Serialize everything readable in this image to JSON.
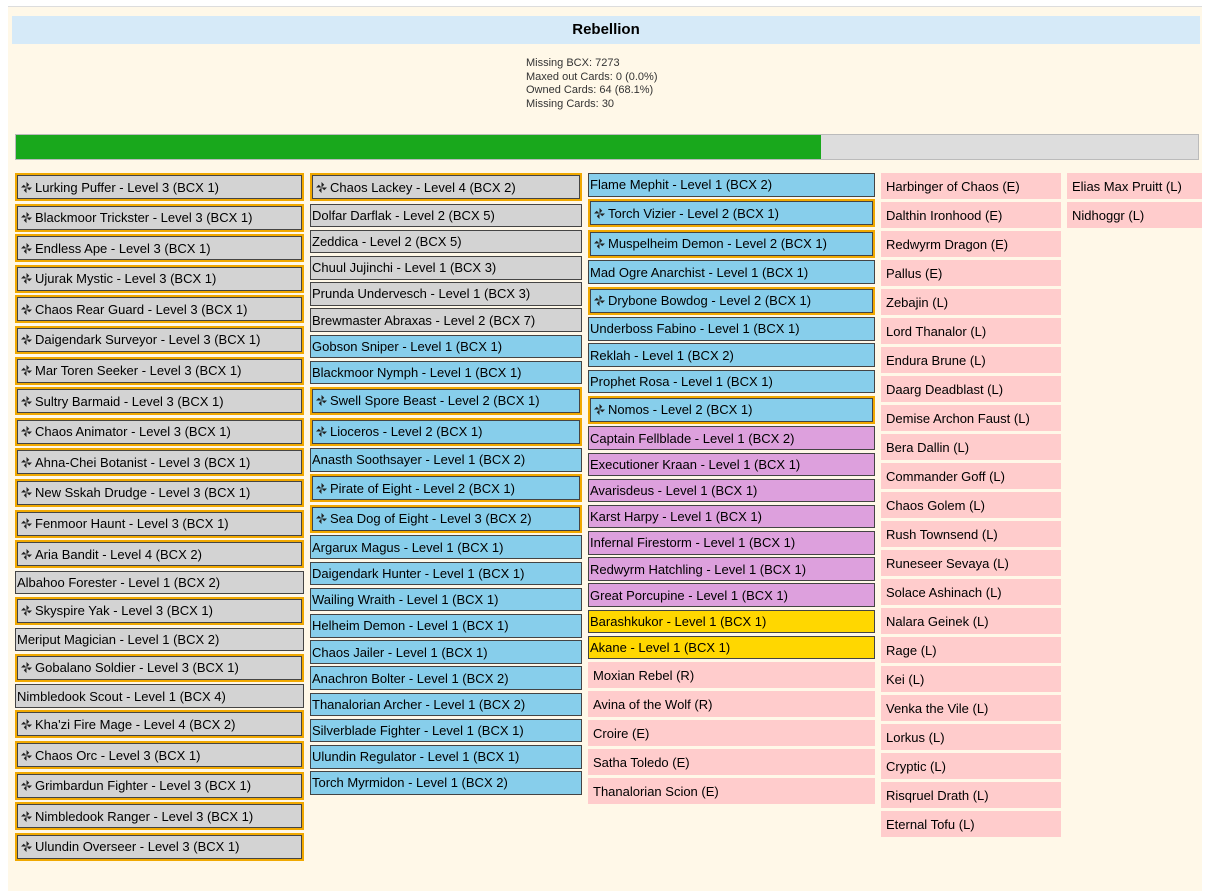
{
  "header": {
    "title": "Rebellion"
  },
  "stats": [
    {
      "label": "Missing BCX:",
      "value": 7273
    },
    {
      "label": "Maxed out Cards:",
      "value": 0,
      "percent": {
        "value": 0,
        "label": "(0.0%)"
      }
    },
    {
      "label": "Owned Cards:",
      "value": 64,
      "percent": {
        "value": 68.1,
        "label": "(68.1%)"
      }
    },
    {
      "label": "Missing Cards:",
      "value": 30
    }
  ],
  "columns": [
    [
      {
        "text": "Lurking Puffer - Level 3 (BCX 1)",
        "style": "gray-max"
      },
      {
        "text": "Blackmoor Trickster - Level 3 (BCX 1)",
        "style": "gray-max"
      },
      {
        "text": "Endless Ape - Level 3 (BCX 1)",
        "style": "gray-max"
      },
      {
        "text": "Ujurak Mystic - Level 3 (BCX 1)",
        "style": "gray-max"
      },
      {
        "text": "Chaos Rear Guard - Level 3 (BCX 1)",
        "style": "gray-max"
      },
      {
        "text": "Daigendark Surveyor - Level 3 (BCX 1)",
        "style": "gray-max"
      },
      {
        "text": "Mar Toren Seeker - Level 3 (BCX 1)",
        "style": "gray-max"
      },
      {
        "text": "Sultry Barmaid - Level 3 (BCX 1)",
        "style": "gray-max"
      },
      {
        "text": "Chaos Animator - Level 3 (BCX 1)",
        "style": "gray-max"
      },
      {
        "text": "Ahna-Chei Botanist - Level 3 (BCX 1)",
        "style": "gray-max"
      },
      {
        "text": "New Sskah Drudge - Level 3 (BCX 1)",
        "style": "gray-max"
      },
      {
        "text": "Fenmoor Haunt - Level 3 (BCX 1)",
        "style": "gray-max"
      },
      {
        "text": "Aria Bandit - Level 4 (BCX 2)",
        "style": "gray-max"
      },
      {
        "text": "Albahoo Forester - Level 1 (BCX 2)",
        "style": "gray"
      },
      {
        "text": "Skyspire Yak - Level 3 (BCX 1)",
        "style": "gray-max"
      },
      {
        "text": "Meriput Magician - Level 1 (BCX 2)",
        "style": "gray"
      },
      {
        "text": "Gobalano Soldier - Level 3 (BCX 1)",
        "style": "gray-max"
      },
      {
        "text": "Nimbledook Scout - Level 1 (BCX 4)",
        "style": "gray"
      },
      {
        "text": "Kha'zi Fire Mage - Level 4 (BCX 2)",
        "style": "gray-max"
      },
      {
        "text": "Chaos Orc - Level 3 (BCX 1)",
        "style": "gray-max"
      },
      {
        "text": "Grimbardun Fighter - Level 3 (BCX 1)",
        "style": "gray-max"
      },
      {
        "text": "Nimbledook Ranger - Level 3 (BCX 1)",
        "style": "gray-max"
      },
      {
        "text": "Ulundin Overseer - Level 3 (BCX 1)",
        "style": "gray-max"
      }
    ],
    [
      {
        "text": "Chaos Lackey - Level 4 (BCX 2)",
        "style": "gray-max"
      },
      {
        "text": "Dolfar Darflak - Level 2 (BCX 5)",
        "style": "gray"
      },
      {
        "text": "Zeddica - Level 2 (BCX 5)",
        "style": "gray"
      },
      {
        "text": "Chuul Jujinchi - Level 1 (BCX 3)",
        "style": "gray"
      },
      {
        "text": "Prunda Undervesch - Level 1 (BCX 3)",
        "style": "gray"
      },
      {
        "text": "Brewmaster Abraxas - Level 2 (BCX 7)",
        "style": "gray"
      },
      {
        "text": "Gobson Sniper - Level 1 (BCX 1)",
        "style": "blue"
      },
      {
        "text": "Blackmoor Nymph - Level 1 (BCX 1)",
        "style": "blue"
      },
      {
        "text": "Swell Spore Beast - Level 2 (BCX 1)",
        "style": "blue-max"
      },
      {
        "text": "Lioceros - Level 2 (BCX 1)",
        "style": "blue-max"
      },
      {
        "text": "Anasth Soothsayer - Level 1 (BCX 2)",
        "style": "blue"
      },
      {
        "text": "Pirate of Eight - Level 2 (BCX 1)",
        "style": "blue-max"
      },
      {
        "text": "Sea Dog of Eight - Level 3 (BCX 2)",
        "style": "blue-max"
      },
      {
        "text": "Argarux Magus - Level 1 (BCX 1)",
        "style": "blue"
      },
      {
        "text": "Daigendark Hunter - Level 1 (BCX 1)",
        "style": "blue"
      },
      {
        "text": "Wailing Wraith - Level 1 (BCX 1)",
        "style": "blue"
      },
      {
        "text": "Helheim Demon - Level 1 (BCX 1)",
        "style": "blue"
      },
      {
        "text": "Chaos Jailer - Level 1 (BCX 1)",
        "style": "blue"
      },
      {
        "text": "Anachron Bolter - Level 1 (BCX 2)",
        "style": "blue"
      },
      {
        "text": "Thanalorian Archer - Level 1 (BCX 2)",
        "style": "blue"
      },
      {
        "text": "Silverblade Fighter - Level 1 (BCX 1)",
        "style": "blue"
      },
      {
        "text": "Ulundin Regulator - Level 1 (BCX 1)",
        "style": "blue"
      },
      {
        "text": "Torch Myrmidon - Level 1 (BCX 2)",
        "style": "blue"
      }
    ],
    [
      {
        "text": "Flame Mephit - Level 1 (BCX 2)",
        "style": "blue"
      },
      {
        "text": "Torch Vizier - Level 2 (BCX 1)",
        "style": "blue-max"
      },
      {
        "text": "Muspelheim Demon - Level 2 (BCX 1)",
        "style": "blue-max"
      },
      {
        "text": "Mad Ogre Anarchist - Level 1 (BCX 1)",
        "style": "blue"
      },
      {
        "text": "Drybone Bowdog - Level 2 (BCX 1)",
        "style": "blue-max"
      },
      {
        "text": "Underboss Fabino - Level 1 (BCX 1)",
        "style": "blue"
      },
      {
        "text": "Reklah - Level 1 (BCX 2)",
        "style": "blue"
      },
      {
        "text": "Prophet Rosa - Level 1 (BCX 1)",
        "style": "blue"
      },
      {
        "text": "Nomos - Level 2 (BCX 1)",
        "style": "blue-max"
      },
      {
        "text": "Captain Fellblade - Level 1 (BCX 2)",
        "style": "purple"
      },
      {
        "text": "Executioner Kraan - Level 1 (BCX 1)",
        "style": "purple"
      },
      {
        "text": "Avarisdeus - Level 1 (BCX 1)",
        "style": "purple"
      },
      {
        "text": "Karst Harpy - Level 1 (BCX 1)",
        "style": "purple"
      },
      {
        "text": "Infernal Firestorm - Level 1 (BCX 1)",
        "style": "purple"
      },
      {
        "text": "Redwyrm Hatchling - Level 1 (BCX 1)",
        "style": "purple"
      },
      {
        "text": "Great Porcupine - Level 1 (BCX 1)",
        "style": "purple"
      },
      {
        "text": "Barashkukor - Level 1 (BCX 1)",
        "style": "gold"
      },
      {
        "text": "Akane - Level 1 (BCX 1)",
        "style": "gold"
      },
      {
        "text": "Moxian Rebel (R)",
        "style": "missing"
      },
      {
        "text": "Avina of the Wolf (R)",
        "style": "missing"
      },
      {
        "text": "Croire (E)",
        "style": "missing"
      },
      {
        "text": "Satha Toledo (E)",
        "style": "missing"
      },
      {
        "text": "Thanalorian Scion (E)",
        "style": "missing"
      }
    ],
    [
      {
        "text": "Harbinger of Chaos (E)",
        "style": "missing"
      },
      {
        "text": "Dalthin Ironhood (E)",
        "style": "missing"
      },
      {
        "text": "Redwyrm Dragon (E)",
        "style": "missing"
      },
      {
        "text": "Pallus (E)",
        "style": "missing"
      },
      {
        "text": "Zebajin (L)",
        "style": "missing"
      },
      {
        "text": "Lord Thanalor (L)",
        "style": "missing"
      },
      {
        "text": "Endura Brune (L)",
        "style": "missing"
      },
      {
        "text": "Daarg Deadblast (L)",
        "style": "missing"
      },
      {
        "text": "Demise Archon Faust (L)",
        "style": "missing"
      },
      {
        "text": "Bera Dallin (L)",
        "style": "missing"
      },
      {
        "text": "Commander Goff (L)",
        "style": "missing"
      },
      {
        "text": "Chaos Golem (L)",
        "style": "missing"
      },
      {
        "text": "Rush Townsend (L)",
        "style": "missing"
      },
      {
        "text": "Runeseer Sevaya (L)",
        "style": "missing"
      },
      {
        "text": "Solace Ashinach (L)",
        "style": "missing"
      },
      {
        "text": "Nalara Geinek (L)",
        "style": "missing"
      },
      {
        "text": "Rage (L)",
        "style": "missing"
      },
      {
        "text": "Kei (L)",
        "style": "missing"
      },
      {
        "text": "Venka the Vile (L)",
        "style": "missing"
      },
      {
        "text": "Lorkus (L)",
        "style": "missing"
      },
      {
        "text": "Cryptic (L)",
        "style": "missing"
      },
      {
        "text": "Risqruel Drath (L)",
        "style": "missing"
      },
      {
        "text": "Eternal Tofu (L)",
        "style": "missing"
      }
    ],
    [
      {
        "text": "Elias Max Pruitt (L)",
        "style": "missing"
      },
      {
        "text": "Nidhoggr (L)",
        "style": "missing"
      }
    ]
  ]
}
